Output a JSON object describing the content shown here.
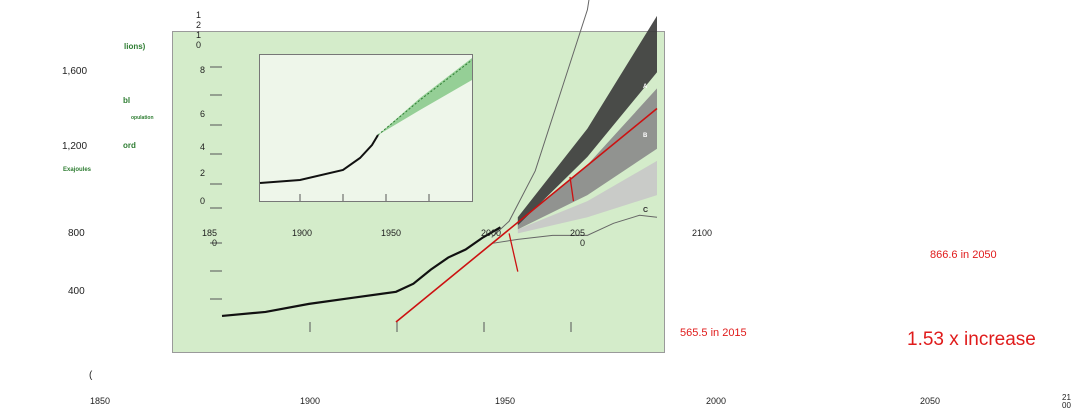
{
  "outer_y_ticks": [
    "1,600",
    "1,200",
    "800",
    "400"
  ],
  "outer_x_ticks": [
    "1850",
    "1900",
    "1950",
    "2000",
    "2050",
    "21\n00"
  ],
  "outer_paren": "(",
  "ylabel_fragments": [
    "lions)",
    "bl",
    "opulation",
    "ord",
    "Exajoules"
  ],
  "inner_y_ticks": [
    "1\n2\n1\n0",
    "8",
    "6",
    "4",
    "2",
    "0"
  ],
  "inner_x_ticks": [
    "185\n0",
    "1900",
    "1950",
    "2000",
    "205\n0",
    "2100"
  ],
  "scenario_labels": [
    "A",
    "B",
    "C"
  ],
  "annotations": {
    "val_2015": "565.5 in 2015",
    "val_2050": "866.6 in 2050",
    "increase": "1.53 x increase"
  },
  "colors": {
    "plot_bg": "#d4ecca",
    "inset_bg": "#eef6ea",
    "trend_line": "#cc1111",
    "annotation_red": "#e01b1b",
    "label_green": "#2e7d32",
    "scenario_a": "#3a3a3a",
    "scenario_b": "#8a8a8a",
    "scenario_c": "#c8c8c8",
    "inset_projection": "#4caf50"
  },
  "chart_data": {
    "type": "line",
    "ylabel": "Exajoules",
    "series": [
      {
        "name": "A",
        "x": [
          1850,
          1875,
          1900,
          1925,
          1950,
          1960,
          1970,
          1980,
          1990,
          2000,
          2010,
          2020,
          2030,
          2040,
          2050,
          2060,
          2070,
          2080,
          2090,
          2100
        ],
        "y": [
          0.3,
          0.5,
          0.9,
          1.2,
          1.5,
          1.9,
          2.6,
          3.2,
          3.6,
          4.2,
          4.7,
          5.3,
          6.0,
          7.0,
          8.1,
          9.2,
          10.4,
          11.6,
          12.8,
          14.0
        ]
      }
    ],
    "extra_series": [
      {
        "name": "B",
        "x": [
          2020,
          2100
        ],
        "y": [
          5.0,
          10.6
        ]
      },
      {
        "name": "C",
        "x": [
          2020,
          2100
        ],
        "y": [
          4.5,
          7.3
        ]
      }
    ],
    "annotations": [
      {
        "x": 2015,
        "y": 565.5,
        "text": "565.5 in 2015"
      },
      {
        "x": 2050,
        "y": 866.6,
        "text": "866.6 in 2050"
      }
    ]
  }
}
